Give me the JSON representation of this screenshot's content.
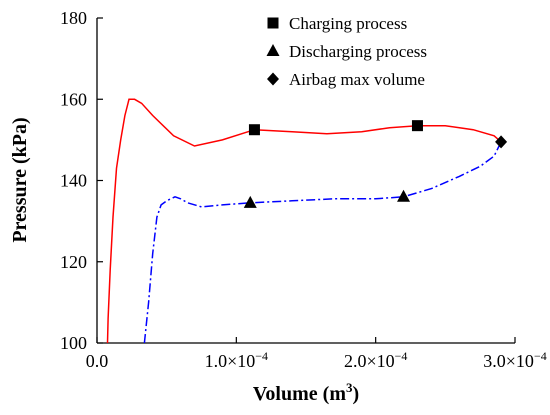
{
  "chart_data": {
    "type": "line",
    "xlabel": "Volume (m3)",
    "ylabel": "Pressure (kPa)",
    "xlim": [
      0,
      0.0003
    ],
    "ylim": [
      100,
      180
    ],
    "x_ticks": [
      {
        "value": 0,
        "label": "0.0"
      },
      {
        "value": 0.0001,
        "label": "1.0×10−4"
      },
      {
        "value": 0.0002,
        "label": "2.0×10−4"
      },
      {
        "value": 0.0003,
        "label": "3.0×10−4"
      }
    ],
    "y_ticks": [
      100,
      120,
      140,
      160,
      180
    ],
    "grid": false,
    "legend_position": "top-right",
    "series": [
      {
        "name": "Charging process",
        "color": "#ff0000",
        "line_style": "solid",
        "marker": "square",
        "x": [
          7.5e-06,
          8e-06,
          9.5e-06,
          1.15e-05,
          1.4e-05,
          1.7e-05,
          2e-05,
          2.3e-05,
          2.7e-05,
          3.2e-05,
          4e-05,
          5.5e-05,
          7e-05,
          9e-05,
          0.000113,
          0.00014,
          0.000165,
          0.00019,
          0.00021,
          0.00023,
          0.00025,
          0.00027,
          0.000285,
          0.00029
        ],
        "y": [
          100,
          106,
          118,
          131,
          143,
          150,
          156,
          160,
          160,
          159,
          156,
          151,
          148.5,
          150,
          152.5,
          152,
          151.5,
          152,
          153,
          153.5,
          153.5,
          152.5,
          151,
          149.5
        ],
        "marker_points": [
          {
            "x": 0.000113,
            "y": 152.5
          },
          {
            "x": 0.00023,
            "y": 153.5
          }
        ]
      },
      {
        "name": "Discharging process",
        "color": "#0000ff",
        "line_style": "dashdot",
        "marker": "triangle",
        "x": [
          3.4e-05,
          3.7e-05,
          4e-05,
          4.3e-05,
          4.6e-05,
          5e-05,
          5.6e-05,
          6e-05,
          6.5e-05,
          7.5e-05,
          9e-05,
          0.00011,
          0.00014,
          0.00017,
          0.0002,
          0.00022,
          0.00024,
          0.00026,
          0.000275,
          0.000285,
          0.00029
        ],
        "y": [
          100,
          110,
          122,
          131,
          134,
          135,
          136,
          135.5,
          134.5,
          133.5,
          134,
          134.5,
          135,
          135.5,
          135.5,
          136,
          138,
          141,
          143.5,
          146,
          149.5
        ],
        "marker_points": [
          {
            "x": 0.00011,
            "y": 134.5
          },
          {
            "x": 0.00022,
            "y": 136
          }
        ]
      },
      {
        "name": "Airbag max volume",
        "color": "#000000",
        "marker": "diamond",
        "x": [
          0.00029
        ],
        "y": [
          149.5
        ]
      }
    ]
  }
}
